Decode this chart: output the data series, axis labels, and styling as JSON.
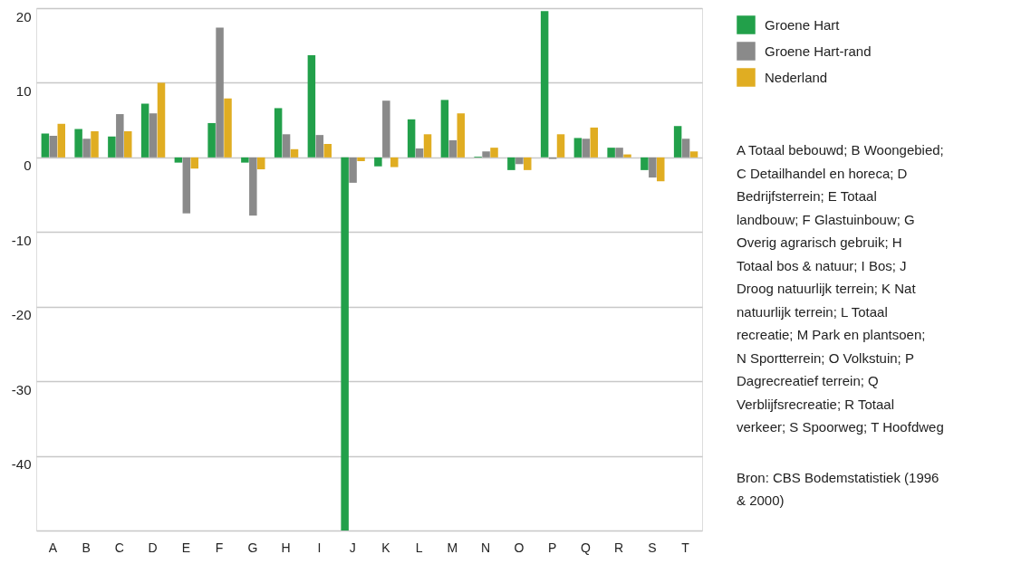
{
  "chart_data": {
    "type": "bar",
    "categories": [
      "A",
      "B",
      "C",
      "D",
      "E",
      "F",
      "G",
      "H",
      "I",
      "J",
      "K",
      "L",
      "M",
      "N",
      "O",
      "P",
      "Q",
      "R",
      "S",
      "T"
    ],
    "series": [
      {
        "name": "Groene Hart",
        "color": "#22a04a",
        "values": [
          3.2,
          3.8,
          2.8,
          7.2,
          -0.7,
          4.6,
          -0.7,
          6.6,
          13.7,
          -50,
          -1.2,
          5.1,
          7.7,
          0.1,
          -1.7,
          19.6,
          2.6,
          1.3,
          -1.7,
          4.2
        ]
      },
      {
        "name": "Groene Hart-rand",
        "color": "#8a8a8a",
        "values": [
          2.9,
          2.5,
          5.8,
          5.9,
          -7.5,
          17.4,
          -7.8,
          3.1,
          3.0,
          -3.4,
          7.6,
          1.2,
          2.3,
          0.8,
          -0.9,
          -0.2,
          2.5,
          1.3,
          -2.7,
          2.5
        ]
      },
      {
        "name": "Nederland",
        "color": "#e0ad22",
        "values": [
          4.5,
          3.5,
          3.5,
          10.0,
          -1.5,
          7.9,
          -1.6,
          1.1,
          1.8,
          -0.5,
          -1.3,
          3.1,
          5.9,
          1.3,
          -1.7,
          3.1,
          4.0,
          0.4,
          -3.2,
          0.8
        ]
      }
    ],
    "ylim": [
      -50,
      20
    ],
    "yticks": [
      20,
      10,
      0,
      -10,
      -20,
      -30,
      -40,
      {
        "value": -50,
        "label": null
      }
    ],
    "grid": "y",
    "legend": "right",
    "annotations": [
      "A Totaal bebouwd; B Woongebied; C Detailhandel en horeca; D Bedrijfsterrein; E Totaal landbouw; F Glastuinbouw; G Overig agrarisch gebruik; H Totaal bos & natuur; I Bos; J Droog natuurlijk terrein; K Nat natuurlijk terrein; L Totaal recreatie; M Park en plantsoen; N Sportterrein; O Volkstuin; P Dagrecreatief terrein; Q Verblijfsrecreatie; R Totaal verkeer; S Spoorweg; T Hoofdweg",
      "Bron: CBS Bodemstatistiek (1996 & 2000)"
    ]
  }
}
